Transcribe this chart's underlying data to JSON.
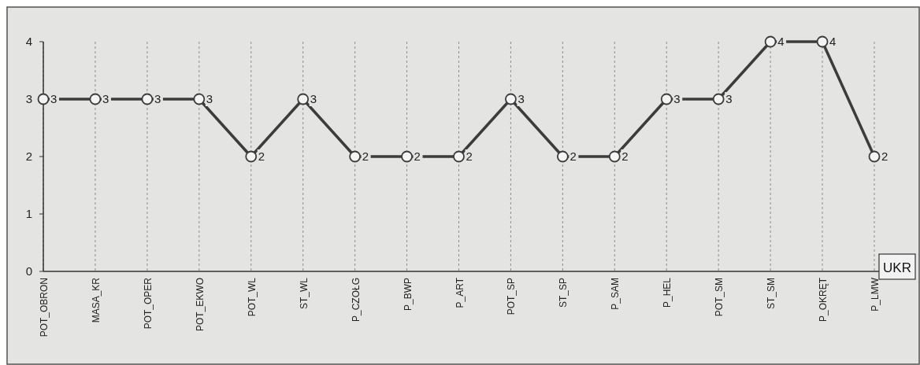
{
  "chart_data": {
    "type": "line",
    "xlabel": "UKR",
    "categories": [
      "POT_OBRON",
      "MASA_KR",
      "POT_OPER",
      "POT_EKWO",
      "POT_WL",
      "ST_WL",
      "P_CZOŁG",
      "P_BWP",
      "P_ART",
      "POT_SP",
      "ST_SP",
      "P_SAM",
      "P_HEL",
      "POT_SM",
      "ST_SM",
      "P_OKRĘT",
      "P_LMW"
    ],
    "series": [
      {
        "color": "#3c3c3c",
        "values": [
          3,
          3,
          3,
          3,
          2,
          3,
          2,
          2,
          2,
          3,
          2,
          2,
          3,
          3,
          4,
          4,
          2
        ]
      }
    ],
    "ylim": [
      0,
      4
    ],
    "yticks": [
      0,
      1,
      2,
      3,
      4
    ],
    "grid": "x",
    "marker": "circle",
    "line_style": "solid",
    "data_labels": true
  }
}
